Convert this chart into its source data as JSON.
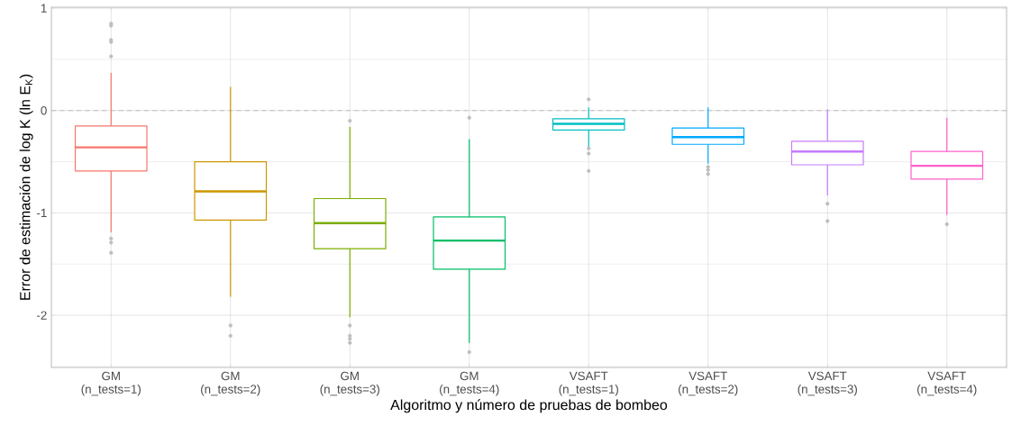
{
  "chart_data": {
    "type": "box",
    "xlabel": "Algoritmo y número de pruebas de bombeo",
    "ylabel": "Error de estimación de log K (ln E$_{K}$)",
    "categories": [
      "GM (n_tests=1)",
      "GM (n_tests=2)",
      "GM (n_tests=3)",
      "GM (n_tests=4)",
      "VSAFT (n_tests=1)",
      "VSAFT (n_tests=2)",
      "VSAFT (n_tests=3)",
      "VSAFT (n_tests=4)"
    ],
    "colors": [
      "#F8766D",
      "#CD9600",
      "#7CAE00",
      "#00BE67",
      "#00BFC4",
      "#00A9FF",
      "#C77CFF",
      "#FF61CC"
    ],
    "boxes": [
      {
        "low": -1.19,
        "q1": -0.59,
        "median": -0.36,
        "q3": -0.15,
        "high": 0.37,
        "outliers": [
          0.85,
          0.83,
          0.69,
          0.67,
          0.53,
          -1.25,
          -1.29,
          -1.39
        ]
      },
      {
        "low": -1.82,
        "q1": -1.07,
        "median": -0.79,
        "q3": -0.5,
        "high": 0.23,
        "outliers": [
          -2.1,
          -2.2
        ]
      },
      {
        "low": -2.02,
        "q1": -1.35,
        "median": -1.1,
        "q3": -0.86,
        "high": -0.16,
        "outliers": [
          -0.1,
          -2.1,
          -2.2,
          -2.23,
          -2.27
        ]
      },
      {
        "low": -2.27,
        "q1": -1.55,
        "median": -1.27,
        "q3": -1.04,
        "high": -0.28,
        "outliers": [
          -0.07,
          -2.36
        ]
      },
      {
        "low": -0.36,
        "q1": -0.19,
        "median": -0.13,
        "q3": -0.08,
        "high": 0.03,
        "outliers": [
          0.11,
          -0.37,
          -0.42,
          -0.59
        ]
      },
      {
        "low": -0.52,
        "q1": -0.33,
        "median": -0.26,
        "q3": -0.17,
        "high": 0.03,
        "outliers": [
          -0.55,
          -0.58,
          -0.62
        ]
      },
      {
        "low": -0.83,
        "q1": -0.53,
        "median": -0.4,
        "q3": -0.3,
        "high": 0.01,
        "outliers": [
          -0.91,
          -1.08
        ]
      },
      {
        "low": -1.02,
        "q1": -0.67,
        "median": -0.54,
        "q3": -0.4,
        "high": -0.07,
        "outliers": [
          -1.11
        ]
      }
    ],
    "ylim": [
      -2.51,
      1.01
    ],
    "yticks": [
      -2,
      -1,
      0,
      1
    ],
    "grid": true,
    "ref_lines": [
      {
        "axis": "y",
        "value": 0,
        "color": "#BDBDBD",
        "line_style": "dashed"
      }
    ]
  }
}
